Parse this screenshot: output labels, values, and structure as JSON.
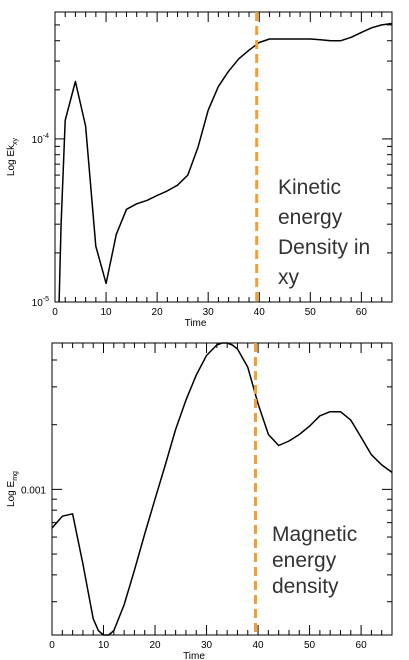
{
  "marker_color": "#f0a030",
  "chart_data": [
    {
      "type": "line",
      "xlabel": "Time",
      "ylabel_main": "Log Ek",
      "ylabel_sub": "xy",
      "yscale": "log",
      "xlim": [
        0,
        66
      ],
      "ylim": [
        1e-05,
        0.0006
      ],
      "xticks": [
        0,
        10,
        20,
        30,
        40,
        50,
        60
      ],
      "xtick_labels": [
        "0",
        "10",
        "20",
        "30",
        "40",
        "50",
        "60"
      ],
      "ytick_labels": [
        "10-4",
        "10-5"
      ],
      "ytick_base": "10",
      "ytick_exponents": [
        "-4",
        "-5"
      ],
      "ytick_values": [
        0.0001,
        1e-05
      ],
      "vline_x": 39.5,
      "annotation": [
        "Kinetic",
        "energy",
        "Density in",
        "xy"
      ],
      "series": [
        {
          "x": [
            0.8,
            1.2,
            2,
            4,
            6,
            8,
            10,
            12,
            14,
            16,
            18,
            20,
            22,
            24,
            26,
            28,
            30,
            32,
            34,
            36,
            38,
            40,
            42,
            44,
            46,
            48,
            50,
            52,
            54,
            56,
            58,
            60,
            62,
            64,
            66
          ],
          "y": [
            1e-05,
            3e-05,
            0.00013,
            0.000225,
            0.00012,
            2.2e-05,
            1.3e-05,
            2.6e-05,
            3.7e-05,
            4e-05,
            4.2e-05,
            4.5e-05,
            4.8e-05,
            5.2e-05,
            6e-05,
            8.9e-05,
            0.00015,
            0.00021,
            0.00026,
            0.00031,
            0.00035,
            0.00039,
            0.00041,
            0.00041,
            0.00041,
            0.00041,
            0.00041,
            0.000405,
            0.0004,
            0.0004,
            0.00042,
            0.00045,
            0.00048,
            0.0005,
            0.00051
          ]
        }
      ]
    },
    {
      "type": "line",
      "xlabel": "Time",
      "ylabel_main": "Log E",
      "ylabel_sub": "mg",
      "yscale": "log",
      "xlim": [
        0,
        66
      ],
      "ylim": [
        0.00021,
        0.0048
      ],
      "xticks": [
        0,
        10,
        20,
        30,
        40,
        50,
        60
      ],
      "xtick_labels": [
        "0",
        "10",
        "20",
        "30",
        "40",
        "50",
        "60"
      ],
      "ytick_labels": [
        "0.001"
      ],
      "ytick_values": [
        0.001
      ],
      "vline_x": 39.5,
      "annotation": [
        "Magnetic",
        "energy",
        "density"
      ],
      "series": [
        {
          "x": [
            0,
            2,
            4,
            6,
            8,
            9,
            10,
            11,
            12,
            14,
            16,
            18,
            20,
            22,
            24,
            26,
            28,
            30,
            32,
            33,
            34,
            35,
            36,
            38,
            40,
            42,
            44,
            46,
            48,
            50,
            52,
            54,
            56,
            58,
            60,
            62,
            64,
            66
          ],
          "y": [
            0.00066,
            0.00075,
            0.00077,
            0.00045,
            0.00025,
            0.00022,
            0.00021,
            0.00021,
            0.00022,
            0.00029,
            0.00042,
            0.00062,
            0.0009,
            0.0013,
            0.0019,
            0.0026,
            0.0034,
            0.0042,
            0.0047,
            0.0048,
            0.0048,
            0.0047,
            0.0045,
            0.0037,
            0.0025,
            0.0018,
            0.0016,
            0.00168,
            0.0018,
            0.00197,
            0.0022,
            0.0023,
            0.0023,
            0.0021,
            0.00175,
            0.00145,
            0.0013,
            0.0012
          ]
        }
      ]
    }
  ]
}
